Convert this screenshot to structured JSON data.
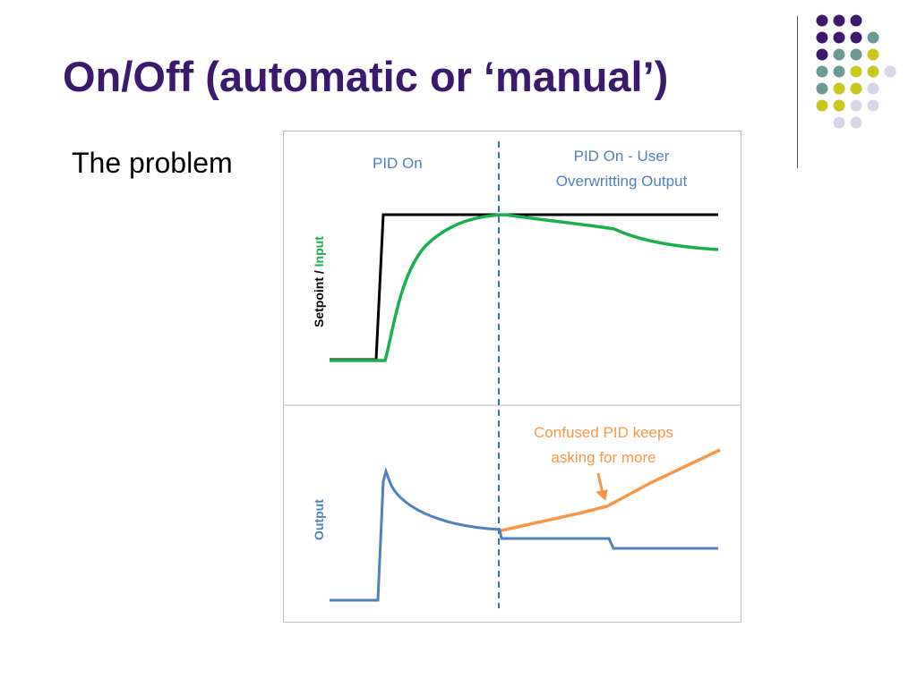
{
  "slide": {
    "title": "On/Off (automatic or ‘manual’)",
    "body": "The problem"
  },
  "colors": {
    "title": "#3b1a6e",
    "dot_purple": "#3b1a6e",
    "dot_teal": "#6b9a96",
    "dot_yellow": "#c8c81e",
    "dot_lavender": "#d6d6e6",
    "setpoint": "#000000",
    "input": "#19b14f",
    "output": "#4f81bd",
    "user_output": "#f79646",
    "divider_line": "#3a6fb0",
    "label_blue": "#4f81bd",
    "label_orange": "#f79646"
  },
  "decoration": {
    "dot_rows": [
      [
        "purple",
        "purple",
        "purple"
      ],
      [
        "purple",
        "purple",
        "purple",
        "teal"
      ],
      [
        "purple",
        "teal",
        "teal",
        "yellow"
      ],
      [
        "teal",
        "teal",
        "yellow",
        "yellow",
        "lavender"
      ],
      [
        "teal",
        "yellow",
        "yellow",
        "lavender"
      ],
      [
        "yellow",
        "yellow",
        "lavender",
        "lavender"
      ],
      [
        "lavender",
        "lavender"
      ]
    ]
  },
  "figure": {
    "label_pid_on": "PID On",
    "label_pid_on_user_line1": "PID On - User",
    "label_pid_on_user_line2": "Overwritting Output",
    "y_label_setpoint": "Setpoint / ",
    "y_label_input": "Input",
    "y_label_output": "Output",
    "annotation_line1": "Confused PID keeps",
    "annotation_line2": "asking for more"
  }
}
